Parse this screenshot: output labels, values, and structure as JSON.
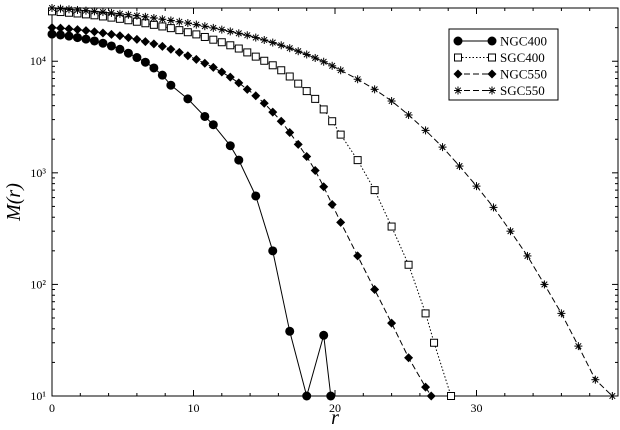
{
  "chart_data": {
    "type": "line",
    "title": "",
    "xlabel": "r",
    "ylabel": "M(r)",
    "xlim": [
      0,
      40
    ],
    "ylim": [
      10,
      30000
    ],
    "yscale": "log",
    "grid": false,
    "legend_position": "top-right",
    "x_ticks": [
      0,
      10,
      20,
      30
    ],
    "x_tick_labels": [
      "0",
      "10",
      "20",
      "30"
    ],
    "y_ticks": [
      10,
      100,
      1000,
      10000
    ],
    "y_tick_labels": [
      "10¹",
      "10²",
      "10³",
      "10⁴"
    ],
    "series": [
      {
        "name": "NGC400",
        "marker": "filled-circle",
        "line_style": "solid",
        "color": "#000000",
        "x": [
          0,
          0.6,
          1.2,
          1.8,
          2.4,
          3.0,
          3.6,
          4.2,
          4.8,
          5.4,
          6.0,
          6.6,
          7.2,
          7.8,
          8.4,
          9.6,
          10.8,
          11.4,
          12.6,
          13.2,
          14.4,
          15.6,
          16.8,
          18.0,
          19.2,
          19.7
        ],
        "y": [
          17500,
          17200,
          16800,
          16300,
          15800,
          15200,
          14500,
          13700,
          12800,
          11800,
          10800,
          9800,
          8700,
          7500,
          6100,
          4600,
          3200,
          2700,
          1750,
          1300,
          620,
          200,
          38,
          10,
          35,
          10
        ]
      },
      {
        "name": "SGC400",
        "marker": "open-square",
        "line_style": "dotted",
        "color": "#000000",
        "x": [
          0,
          0.6,
          1.2,
          1.8,
          2.4,
          3.0,
          3.6,
          4.2,
          4.8,
          5.4,
          6.0,
          6.6,
          7.2,
          7.8,
          8.4,
          9.0,
          9.6,
          10.2,
          10.8,
          11.4,
          12.0,
          12.6,
          13.2,
          13.8,
          14.4,
          15.0,
          15.6,
          16.2,
          16.8,
          17.4,
          18.0,
          18.6,
          19.2,
          19.8,
          20.4,
          21.6,
          22.8,
          24.0,
          25.2,
          26.4,
          27.0,
          28.2
        ],
        "y": [
          28000,
          27600,
          27200,
          26800,
          26300,
          25800,
          25200,
          24600,
          24000,
          23300,
          22600,
          21900,
          21200,
          20500,
          19800,
          19000,
          18200,
          17400,
          16500,
          15600,
          14800,
          13900,
          13000,
          12000,
          11000,
          10100,
          9200,
          8300,
          7300,
          6300,
          5400,
          4600,
          3700,
          2900,
          2200,
          1300,
          700,
          330,
          150,
          55,
          30,
          10
        ]
      },
      {
        "name": "NGC550",
        "marker": "filled-diamond",
        "line_style": "dashed",
        "color": "#000000",
        "x": [
          0,
          0.6,
          1.2,
          1.8,
          2.4,
          3.0,
          3.6,
          4.2,
          4.8,
          5.4,
          6.0,
          6.6,
          7.2,
          7.8,
          8.4,
          9.0,
          9.6,
          10.2,
          10.8,
          11.4,
          12.0,
          12.6,
          13.2,
          13.8,
          14.4,
          15.0,
          15.6,
          16.2,
          16.8,
          17.4,
          18.0,
          18.6,
          19.2,
          19.8,
          20.4,
          21.6,
          22.8,
          24.0,
          25.2,
          26.4,
          26.8
        ],
        "y": [
          20000,
          19800,
          19500,
          19200,
          18800,
          18400,
          17900,
          17400,
          16900,
          16300,
          15700,
          15000,
          14300,
          13600,
          12800,
          12000,
          11200,
          10400,
          9600,
          8800,
          8000,
          7200,
          6400,
          5600,
          4900,
          4200,
          3500,
          2900,
          2300,
          1800,
          1400,
          1050,
          750,
          520,
          360,
          180,
          90,
          45,
          22,
          12,
          10
        ]
      },
      {
        "name": "SGC550",
        "marker": "asterisk",
        "line_style": "dashed",
        "color": "#000000",
        "x": [
          0,
          0.6,
          1.2,
          1.8,
          2.4,
          3.0,
          3.6,
          4.2,
          4.8,
          5.4,
          6.0,
          6.6,
          7.2,
          7.8,
          8.4,
          9.0,
          9.6,
          10.2,
          10.8,
          11.4,
          12.0,
          12.6,
          13.2,
          13.8,
          14.4,
          15.0,
          15.6,
          16.2,
          16.8,
          17.4,
          18.0,
          18.6,
          19.2,
          19.8,
          20.4,
          21.6,
          22.8,
          24.0,
          25.2,
          26.4,
          27.6,
          28.8,
          30.0,
          31.2,
          32.4,
          33.6,
          34.8,
          36.0,
          37.2,
          38.4,
          39.6
        ],
        "y": [
          30000,
          29600,
          29200,
          28800,
          28400,
          28000,
          27600,
          27100,
          26600,
          26100,
          25600,
          25000,
          24400,
          23800,
          23200,
          22600,
          22000,
          21300,
          20600,
          19900,
          19200,
          18500,
          17800,
          17100,
          16300,
          15500,
          14700,
          13900,
          13100,
          12300,
          11500,
          10700,
          9900,
          9100,
          8300,
          6900,
          5600,
          4400,
          3300,
          2400,
          1700,
          1150,
          760,
          490,
          300,
          180,
          100,
          55,
          28,
          14,
          10
        ]
      }
    ]
  }
}
